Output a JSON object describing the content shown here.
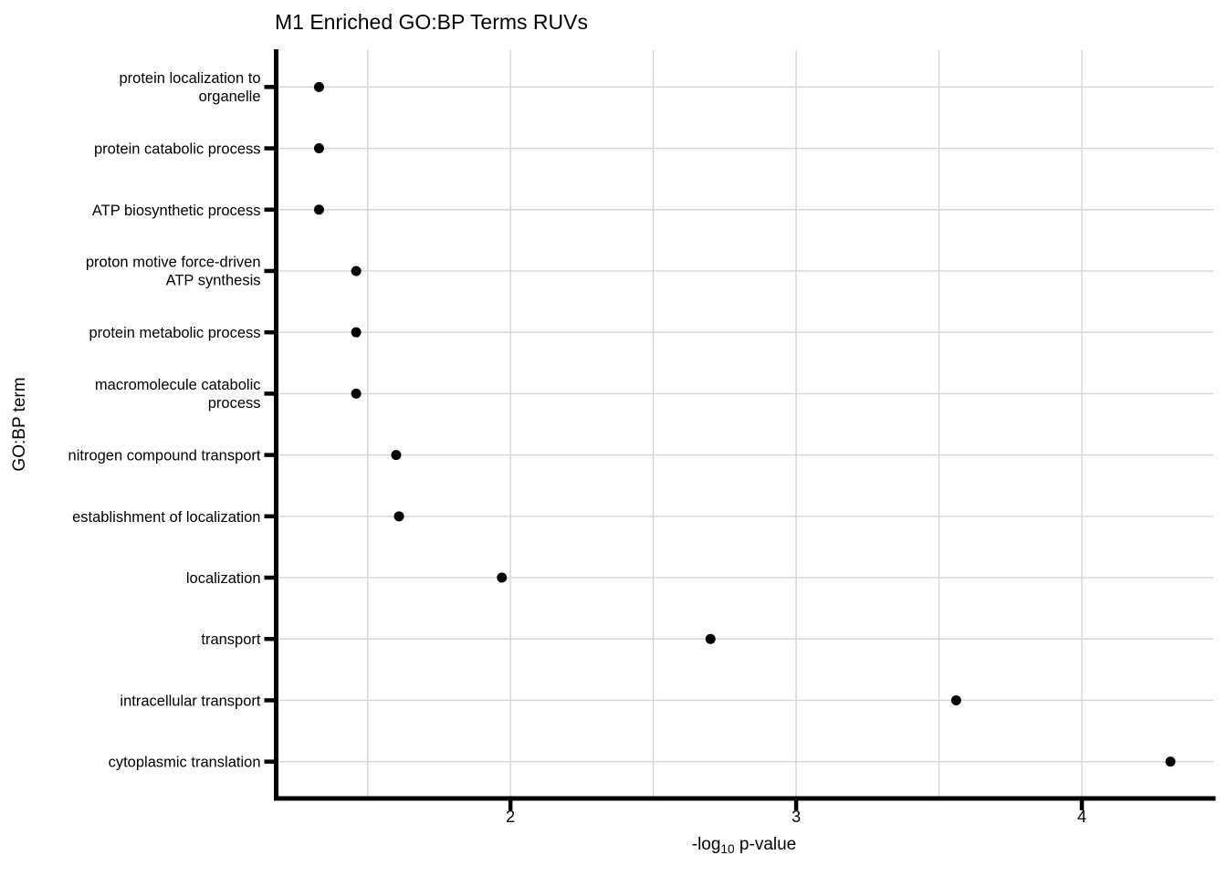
{
  "page": {
    "background": "#ffffff"
  },
  "chart_data": {
    "type": "scatter",
    "title": "M1 Enriched GO:BP Terms RUVs",
    "ylabel": "GO:BP term",
    "xlabel": {
      "prefix": "-log",
      "sub": "10",
      "suffix": " p-value"
    },
    "categories": [
      "protein localization to\norganelle",
      "protein catabolic process",
      "ATP biosynthetic process",
      "proton motive force-driven\nATP synthesis",
      "protein metabolic process",
      "macromolecule catabolic\nprocess",
      "nitrogen compound transport",
      "establishment of localization",
      "localization",
      "transport",
      "intracellular transport",
      "cytoplasmic translation"
    ],
    "values": [
      1.33,
      1.33,
      1.33,
      1.46,
      1.46,
      1.46,
      1.6,
      1.61,
      1.97,
      2.7,
      3.56,
      4.31
    ],
    "x_ticks": [
      2,
      3,
      4
    ],
    "x_minor_gridlines": [
      1.5,
      2.5,
      3.5
    ],
    "xlim": [
      1.18,
      4.46
    ],
    "legend": "none",
    "grid": "major-and-minor-vertical-plus-category-horizontal",
    "colors": {
      "point": "#000000",
      "axis": "#000000",
      "grid": "#d5d5d5",
      "text": "#000000",
      "background": "#ffffff"
    }
  }
}
